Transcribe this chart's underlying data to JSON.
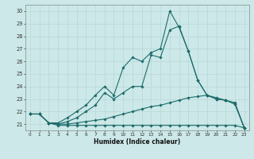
{
  "xlabel": "Humidex (Indice chaleur)",
  "xlim": [
    -0.5,
    23.5
  ],
  "ylim": [
    20.5,
    30.5
  ],
  "yticks": [
    21,
    22,
    23,
    24,
    25,
    26,
    27,
    28,
    29,
    30
  ],
  "xticks": [
    0,
    1,
    2,
    3,
    4,
    5,
    6,
    7,
    8,
    9,
    10,
    11,
    12,
    13,
    14,
    15,
    16,
    17,
    18,
    19,
    20,
    21,
    22,
    23
  ],
  "background_color": "#cce8e8",
  "grid_color": "#b8d8d8",
  "line_color": "#1e6b6b",
  "lines": [
    [
      21.8,
      21.8,
      21.1,
      20.9,
      20.9,
      20.9,
      20.9,
      20.9,
      20.9,
      20.9,
      20.9,
      20.9,
      20.9,
      20.9,
      20.9,
      20.9,
      20.9,
      20.9,
      20.9,
      20.9,
      20.9,
      20.9,
      20.9,
      20.7
    ],
    [
      21.8,
      21.8,
      21.1,
      21.0,
      21.0,
      21.1,
      21.2,
      21.3,
      21.4,
      21.6,
      21.8,
      22.0,
      22.2,
      22.4,
      22.5,
      22.7,
      22.9,
      23.1,
      23.2,
      23.3,
      23.1,
      22.9,
      22.7,
      20.7
    ],
    [
      21.8,
      21.8,
      21.1,
      21.0,
      21.2,
      21.5,
      22.0,
      22.5,
      23.5,
      23.0,
      23.5,
      24.0,
      24.0,
      26.5,
      26.3,
      28.5,
      28.8,
      26.8,
      24.5,
      23.3,
      23.0,
      22.9,
      22.6,
      20.7
    ],
    [
      21.8,
      21.8,
      21.1,
      21.1,
      21.5,
      22.0,
      22.5,
      23.3,
      24.0,
      23.3,
      25.5,
      26.3,
      26.0,
      26.7,
      27.0,
      30.0,
      28.7,
      26.8,
      24.5,
      23.3,
      23.0,
      22.9,
      22.6,
      20.7
    ]
  ]
}
